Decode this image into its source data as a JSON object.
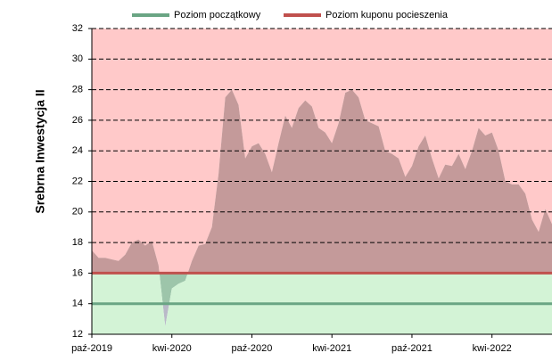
{
  "chart_data": {
    "type": "area",
    "ylabel": "Srebrna Inwestycja II",
    "categories": [
      "paź-2019",
      null,
      null,
      null,
      null,
      null,
      null,
      null,
      null,
      null,
      null,
      null,
      "kwi-2020",
      null,
      null,
      null,
      null,
      null,
      null,
      null,
      null,
      null,
      null,
      null,
      "paź-2020",
      null,
      null,
      null,
      null,
      null,
      null,
      null,
      null,
      null,
      null,
      null,
      "kwi-2021",
      null,
      null,
      null,
      null,
      null,
      null,
      null,
      null,
      null,
      null,
      null,
      "paź-2021",
      null,
      null,
      null,
      null,
      null,
      null,
      null,
      null,
      null,
      null,
      null,
      "kwi-2022",
      null,
      null,
      null,
      null,
      null,
      null,
      null,
      null,
      null
    ],
    "series": [
      {
        "color": "#c49a9a",
        "values": [
          17.5,
          17.0,
          17.0,
          16.9,
          16.8,
          17.2,
          18.0,
          18.2,
          17.8,
          18.1,
          16.5,
          12.5,
          15.0,
          15.3,
          15.5,
          16.8,
          17.8,
          17.9,
          19.0,
          22.5,
          27.5,
          28.0,
          27.0,
          23.5,
          24.3,
          24.5,
          23.8,
          22.6,
          24.5,
          26.3,
          25.5,
          26.8,
          27.3,
          26.9,
          25.5,
          25.2,
          24.5,
          25.8,
          27.8,
          28.0,
          27.5,
          26.0,
          25.8,
          25.6,
          24.0,
          23.8,
          23.5,
          22.3,
          23.0,
          24.3,
          25.0,
          23.5,
          22.2,
          23.1,
          23.0,
          23.8,
          22.8,
          24.0,
          25.5,
          25.0,
          25.2,
          24.0,
          22.0,
          21.8,
          21.8,
          21.2,
          19.5,
          18.7,
          20.2,
          19.2
        ]
      }
    ],
    "reference_lines": [
      {
        "name": "Poziom początkowy",
        "color": "#6aa584",
        "value": 14
      },
      {
        "name": "Poziom kuponu pocieszenia",
        "color": "#c0504d",
        "value": 16
      }
    ],
    "ylim": [
      12,
      32
    ],
    "yticks": [
      12,
      14,
      16,
      18,
      20,
      22,
      24,
      26,
      28,
      30,
      32
    ],
    "grid": true
  }
}
